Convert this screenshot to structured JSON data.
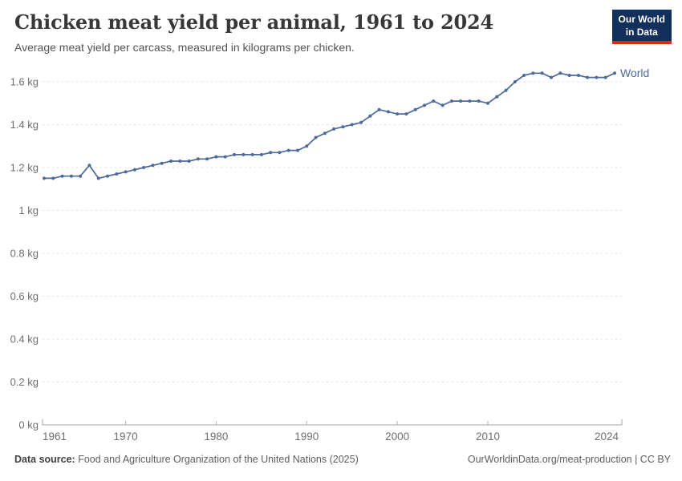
{
  "header": {
    "title": "Chicken meat yield per animal, 1961 to 2024",
    "subtitle": "Average meat yield per carcass, measured in kilograms per chicken.",
    "logo": {
      "line1": "Our World",
      "line2": "in Data"
    }
  },
  "footer": {
    "source_label": "Data source:",
    "source_text": "Food and Agriculture Organization of the United Nations (2025)",
    "link_text": "OurWorldinData.org/meat-production | CC BY"
  },
  "colors": {
    "line": "#4c6a9c",
    "series_label": "#4c6a9c",
    "grid": "#dcdcdc",
    "axis": "#a3a3a3",
    "tick_mark": "#b5b5b5",
    "tick_label": "#6e6e6e",
    "title": "#383838",
    "subtitle": "#545454",
    "footer_text": "#5e5e5e",
    "logo_bg": "#12305b",
    "logo_red": "#d7281b"
  },
  "chart_data": {
    "type": "line",
    "title": "Chicken meat yield per animal, 1961 to 2024",
    "subtitle": "Average meat yield per carcass, measured in kilograms per chicken.",
    "unit": "kg",
    "xlabel": "",
    "ylabel": "",
    "xlim": [
      1961,
      2024
    ],
    "ylim": [
      0,
      1.65
    ],
    "grid": "horizontal-dashed",
    "legend_position": "end-of-line",
    "x": [
      1961,
      1962,
      1963,
      1964,
      1965,
      1966,
      1967,
      1968,
      1969,
      1970,
      1971,
      1972,
      1973,
      1974,
      1975,
      1976,
      1977,
      1978,
      1979,
      1980,
      1981,
      1982,
      1983,
      1984,
      1985,
      1986,
      1987,
      1988,
      1989,
      1990,
      1991,
      1992,
      1993,
      1994,
      1995,
      1996,
      1997,
      1998,
      1999,
      2000,
      2001,
      2002,
      2003,
      2004,
      2005,
      2006,
      2007,
      2008,
      2009,
      2010,
      2011,
      2012,
      2013,
      2014,
      2015,
      2016,
      2017,
      2018,
      2019,
      2020,
      2021,
      2022,
      2023,
      2024
    ],
    "series": [
      {
        "name": "World",
        "values": [
          1.15,
          1.15,
          1.16,
          1.16,
          1.16,
          1.21,
          1.15,
          1.16,
          1.17,
          1.18,
          1.19,
          1.2,
          1.21,
          1.22,
          1.23,
          1.23,
          1.23,
          1.24,
          1.24,
          1.25,
          1.25,
          1.26,
          1.26,
          1.26,
          1.26,
          1.27,
          1.27,
          1.28,
          1.28,
          1.3,
          1.34,
          1.36,
          1.38,
          1.39,
          1.4,
          1.41,
          1.44,
          1.47,
          1.46,
          1.45,
          1.45,
          1.47,
          1.49,
          1.51,
          1.49,
          1.51,
          1.51,
          1.51,
          1.51,
          1.5,
          1.53,
          1.56,
          1.6,
          1.63,
          1.64,
          1.64,
          1.62,
          1.64,
          1.63,
          1.63,
          1.62,
          1.62,
          1.62,
          1.64
        ]
      }
    ],
    "x_ticks": [
      {
        "year": 1961,
        "label": "1961"
      },
      {
        "year": 1970,
        "label": "1970"
      },
      {
        "year": 1980,
        "label": "1980"
      },
      {
        "year": 1990,
        "label": "1990"
      },
      {
        "year": 2000,
        "label": "2000"
      },
      {
        "year": 2010,
        "label": "2010"
      },
      {
        "year": 2024,
        "label": "2024"
      }
    ],
    "y_ticks": [
      {
        "value": 0,
        "label": "0 kg"
      },
      {
        "value": 0.2,
        "label": "0.2 kg"
      },
      {
        "value": 0.4,
        "label": "0.4 kg"
      },
      {
        "value": 0.6,
        "label": "0.6 kg"
      },
      {
        "value": 0.8,
        "label": "0.8 kg"
      },
      {
        "value": 1,
        "label": "1 kg"
      },
      {
        "value": 1.2,
        "label": "1.2 kg"
      },
      {
        "value": 1.4,
        "label": "1.4 kg"
      },
      {
        "value": 1.6,
        "label": "1.6 kg"
      }
    ]
  }
}
